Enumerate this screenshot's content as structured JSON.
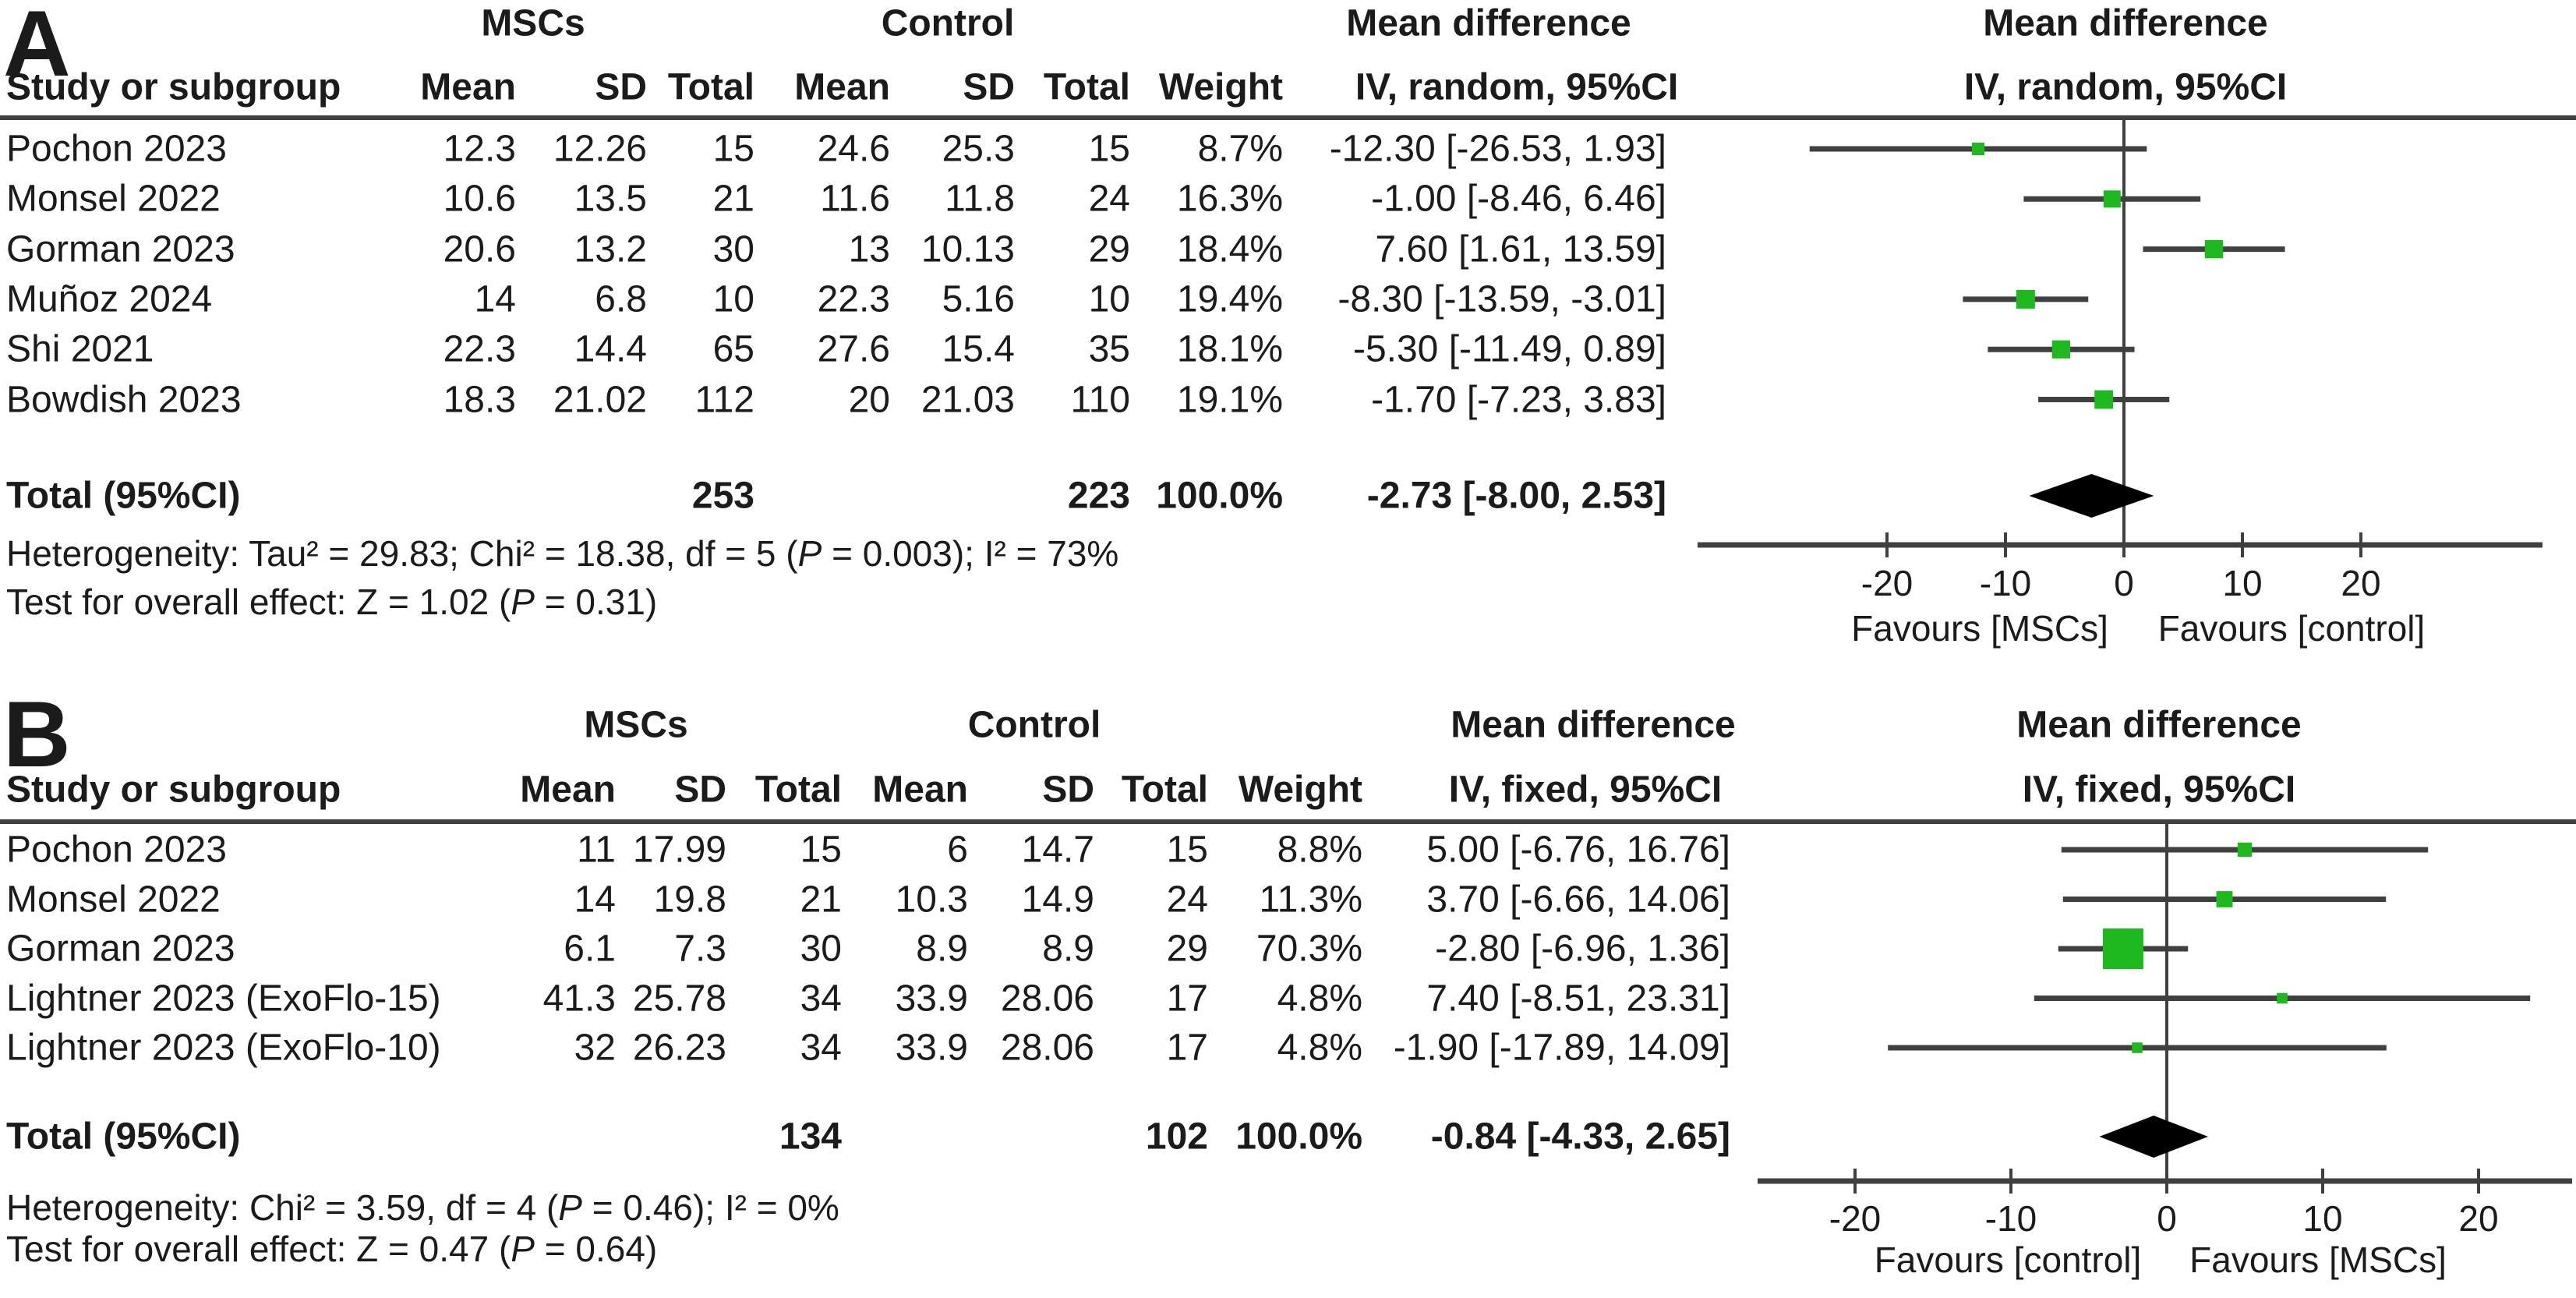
{
  "style": {
    "marker_color": "#1eb91e",
    "line_color": "#404040",
    "diamond_color": "#000000",
    "text_color": "#1b1b1b"
  },
  "chart_data": [
    {
      "type": "forest_plot",
      "panel": "A",
      "group_treatment": "MSCs",
      "group_control": "Control",
      "effect_header_table": "Mean difference",
      "effect_header_plot": "Mean difference",
      "ci_method_table": "IV, random, 95%CI",
      "ci_method_plot": "IV, random, 95%CI",
      "columns": {
        "study": "Study or subgroup",
        "mean": "Mean",
        "sd": "SD",
        "total": "Total",
        "mean2": "Mean",
        "sd2": "SD",
        "total2": "Total",
        "weight": "Weight"
      },
      "studies": [
        {
          "name": "Pochon 2023",
          "mean": "12.3",
          "sd": "12.26",
          "total": "15",
          "c_mean": "24.6",
          "c_sd": "25.3",
          "c_total": "15",
          "weight": "8.7%",
          "ci_text": "-12.30 [-26.53, 1.93]",
          "est": -12.3,
          "lo": -26.53,
          "hi": 1.93,
          "weight_pct": 8.7
        },
        {
          "name": "Monsel 2022",
          "mean": "10.6",
          "sd": "13.5",
          "total": "21",
          "c_mean": "11.6",
          "c_sd": "11.8",
          "c_total": "24",
          "weight": "16.3%",
          "ci_text": "-1.00 [-8.46, 6.46]",
          "est": -1.0,
          "lo": -8.46,
          "hi": 6.46,
          "weight_pct": 16.3
        },
        {
          "name": "Gorman 2023",
          "mean": "20.6",
          "sd": "13.2",
          "total": "30",
          "c_mean": "13",
          "c_sd": "10.13",
          "c_total": "29",
          "weight": "18.4%",
          "ci_text": "7.60 [1.61, 13.59]",
          "est": 7.6,
          "lo": 1.61,
          "hi": 13.59,
          "weight_pct": 18.4
        },
        {
          "name": "Muñoz 2024",
          "mean": "14",
          "sd": "6.8",
          "total": "10",
          "c_mean": "22.3",
          "c_sd": "5.16",
          "c_total": "10",
          "weight": "19.4%",
          "ci_text": "-8.30 [-13.59, -3.01]",
          "est": -8.3,
          "lo": -13.59,
          "hi": -3.01,
          "weight_pct": 19.4
        },
        {
          "name": "Shi 2021",
          "mean": "22.3",
          "sd": "14.4",
          "total": "65",
          "c_mean": "27.6",
          "c_sd": "15.4",
          "c_total": "35",
          "weight": "18.1%",
          "ci_text": "-5.30 [-11.49, 0.89]",
          "est": -5.3,
          "lo": -11.49,
          "hi": 0.89,
          "weight_pct": 18.1
        },
        {
          "name": "Bowdish 2023",
          "mean": "18.3",
          "sd": "21.02",
          "total": "112",
          "c_mean": "20",
          "c_sd": "21.03",
          "c_total": "110",
          "weight": "19.1%",
          "ci_text": "-1.70 [-7.23, 3.83]",
          "est": -1.7,
          "lo": -7.23,
          "hi": 3.83,
          "weight_pct": 19.1
        }
      ],
      "total": {
        "label": "Total (95%CI)",
        "total": "253",
        "c_total": "223",
        "weight": "100.0%",
        "ci_text": "-2.73 [-8.00, 2.53]",
        "est": -2.73,
        "lo": -8.0,
        "hi": 2.53
      },
      "heterogeneity": "Heterogeneity: Tau² = 29.83; Chi² = 18.38, df = 5 (P = 0.003); I² = 73%",
      "overall_effect": "Test for overall effect: Z = 1.02 (P = 0.31)",
      "axis_ticks": [
        -20,
        -10,
        0,
        10,
        20
      ],
      "favours_left": "Favours [MSCs]",
      "favours_right": "Favours [control]"
    },
    {
      "type": "forest_plot",
      "panel": "B",
      "group_treatment": "MSCs",
      "group_control": "Control",
      "effect_header_table": "Mean difference",
      "effect_header_plot": "Mean difference",
      "ci_method_table": "IV, fixed, 95%CI",
      "ci_method_plot": "IV, fixed, 95%CI",
      "columns": {
        "study": "Study or subgroup",
        "mean": "Mean",
        "sd": "SD",
        "total": "Total",
        "mean2": "Mean",
        "sd2": "SD",
        "total2": "Total",
        "weight": "Weight"
      },
      "studies": [
        {
          "name": "Pochon 2023",
          "mean": "11",
          "sd": "17.99",
          "total": "15",
          "c_mean": "6",
          "c_sd": "14.7",
          "c_total": "15",
          "weight": "8.8%",
          "ci_text": "5.00 [-6.76, 16.76]",
          "est": 5.0,
          "lo": -6.76,
          "hi": 16.76,
          "weight_pct": 8.8
        },
        {
          "name": "Monsel 2022",
          "mean": "14",
          "sd": "19.8",
          "total": "21",
          "c_mean": "10.3",
          "c_sd": "14.9",
          "c_total": "24",
          "weight": "11.3%",
          "ci_text": "3.70 [-6.66, 14.06]",
          "est": 3.7,
          "lo": -6.66,
          "hi": 14.06,
          "weight_pct": 11.3
        },
        {
          "name": "Gorman 2023",
          "mean": "6.1",
          "sd": "7.3",
          "total": "30",
          "c_mean": "8.9",
          "c_sd": "8.9",
          "c_total": "29",
          "weight": "70.3%",
          "ci_text": "-2.80 [-6.96, 1.36]",
          "est": -2.8,
          "lo": -6.96,
          "hi": 1.36,
          "weight_pct": 70.3
        },
        {
          "name": "Lightner 2023 (ExoFlo-15)",
          "mean": "41.3",
          "sd": "25.78",
          "total": "34",
          "c_mean": "33.9",
          "c_sd": "28.06",
          "c_total": "17",
          "weight": "4.8%",
          "ci_text": "7.40 [-8.51, 23.31]",
          "est": 7.4,
          "lo": -8.51,
          "hi": 23.31,
          "weight_pct": 4.8
        },
        {
          "name": "Lightner 2023 (ExoFlo-10)",
          "mean": "32",
          "sd": "26.23",
          "total": "34",
          "c_mean": "33.9",
          "c_sd": "28.06",
          "c_total": "17",
          "weight": "4.8%",
          "ci_text": "-1.90 [-17.89, 14.09]",
          "est": -1.9,
          "lo": -17.89,
          "hi": 14.09,
          "weight_pct": 4.8
        }
      ],
      "total": {
        "label": "Total (95%CI)",
        "total": "134",
        "c_total": "102",
        "weight": "100.0%",
        "ci_text": "-0.84 [-4.33, 2.65]",
        "est": -0.84,
        "lo": -4.33,
        "hi": 2.65
      },
      "heterogeneity": "Heterogeneity: Chi² = 3.59, df = 4 (P = 0.46); I² = 0%",
      "overall_effect": "Test for overall effect: Z = 0.47 (P = 0.64)",
      "axis_ticks": [
        -20,
        -10,
        0,
        10,
        20
      ],
      "favours_left": "Favours [control]",
      "favours_right": "Favours [MSCs]"
    }
  ]
}
